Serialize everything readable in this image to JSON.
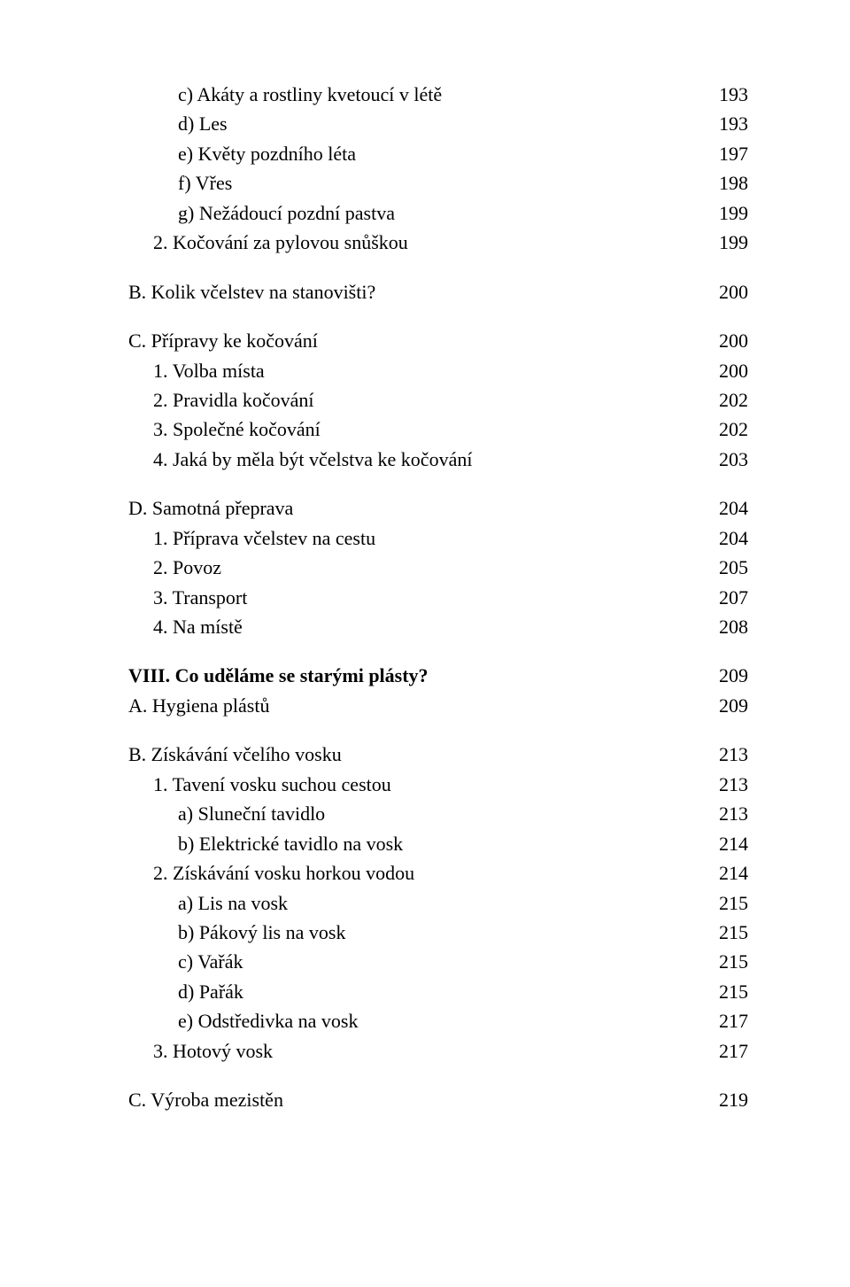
{
  "entries": [
    {
      "text": "c) Akáty a rostliny kvetoucí v létě",
      "page": "193",
      "indent": 2,
      "gap": "none",
      "bold": false
    },
    {
      "text": "d) Les",
      "page": "193",
      "indent": 2,
      "gap": "none",
      "bold": false
    },
    {
      "text": "e) Květy pozdního léta",
      "page": "197",
      "indent": 2,
      "gap": "none",
      "bold": false
    },
    {
      "text": "f) Vřes",
      "page": "198",
      "indent": 2,
      "gap": "none",
      "bold": false
    },
    {
      "text": "g) Nežádoucí pozdní pastva",
      "page": "199",
      "indent": 2,
      "gap": "none",
      "bold": false
    },
    {
      "text": "2. Kočování za pylovou snůškou",
      "page": "199",
      "indent": 1,
      "gap": "none",
      "bold": false
    },
    {
      "text": "B. Kolik včelstev na stanovišti?",
      "page": "200",
      "indent": 0,
      "gap": "medium",
      "bold": false
    },
    {
      "text": "C. Přípravy ke kočování",
      "page": "200",
      "indent": 0,
      "gap": "medium",
      "bold": false
    },
    {
      "text": "1. Volba místa",
      "page": "200",
      "indent": 1,
      "gap": "none",
      "bold": false
    },
    {
      "text": "2. Pravidla kočování",
      "page": "202",
      "indent": 1,
      "gap": "none",
      "bold": false
    },
    {
      "text": "3. Společné kočování",
      "page": "202",
      "indent": 1,
      "gap": "none",
      "bold": false
    },
    {
      "text": "4. Jaká by měla být včelstva ke kočování",
      "page": "203",
      "indent": 1,
      "gap": "none",
      "bold": false
    },
    {
      "text": "D. Samotná přeprava",
      "page": "204",
      "indent": 0,
      "gap": "medium",
      "bold": false
    },
    {
      "text": "1. Příprava včelstev na cestu",
      "page": "204",
      "indent": 1,
      "gap": "none",
      "bold": false
    },
    {
      "text": "2. Povoz",
      "page": "205",
      "indent": 1,
      "gap": "none",
      "bold": false
    },
    {
      "text": "3. Transport",
      "page": "207",
      "indent": 1,
      "gap": "none",
      "bold": false
    },
    {
      "text": "4. Na místě",
      "page": "208",
      "indent": 1,
      "gap": "none",
      "bold": false
    },
    {
      "text": "VIII. Co uděláme se starými plásty?",
      "page": "209",
      "indent": 0,
      "gap": "medium",
      "bold": true
    },
    {
      "text": "A. Hygiena plástů",
      "page": "209",
      "indent": 0,
      "gap": "none",
      "bold": false
    },
    {
      "text": "B. Získávání včelího vosku",
      "page": "213",
      "indent": 0,
      "gap": "medium",
      "bold": false
    },
    {
      "text": "1. Tavení vosku suchou cestou",
      "page": "213",
      "indent": 1,
      "gap": "none",
      "bold": false
    },
    {
      "text": "a) Sluneční tavidlo",
      "page": "213",
      "indent": 2,
      "gap": "none",
      "bold": false
    },
    {
      "text": "b) Elektrické tavidlo na vosk",
      "page": "214",
      "indent": 2,
      "gap": "none",
      "bold": false
    },
    {
      "text": "2. Získávání vosku horkou vodou",
      "page": "214",
      "indent": 1,
      "gap": "none",
      "bold": false
    },
    {
      "text": "a) Lis na vosk",
      "page": "215",
      "indent": 2,
      "gap": "none",
      "bold": false
    },
    {
      "text": "b) Pákový lis na vosk",
      "page": "215",
      "indent": 2,
      "gap": "none",
      "bold": false
    },
    {
      "text": "c) Vařák",
      "page": "215",
      "indent": 2,
      "gap": "none",
      "bold": false
    },
    {
      "text": "d) Pařák",
      "page": "215",
      "indent": 2,
      "gap": "none",
      "bold": false
    },
    {
      "text": "e) Odstředivka na vosk",
      "page": "217",
      "indent": 2,
      "gap": "none",
      "bold": false
    },
    {
      "text": "3. Hotový vosk",
      "page": "217",
      "indent": 1,
      "gap": "none",
      "bold": false
    },
    {
      "text": "C. Výroba mezistěn",
      "page": "219",
      "indent": 0,
      "gap": "medium",
      "bold": false
    }
  ]
}
